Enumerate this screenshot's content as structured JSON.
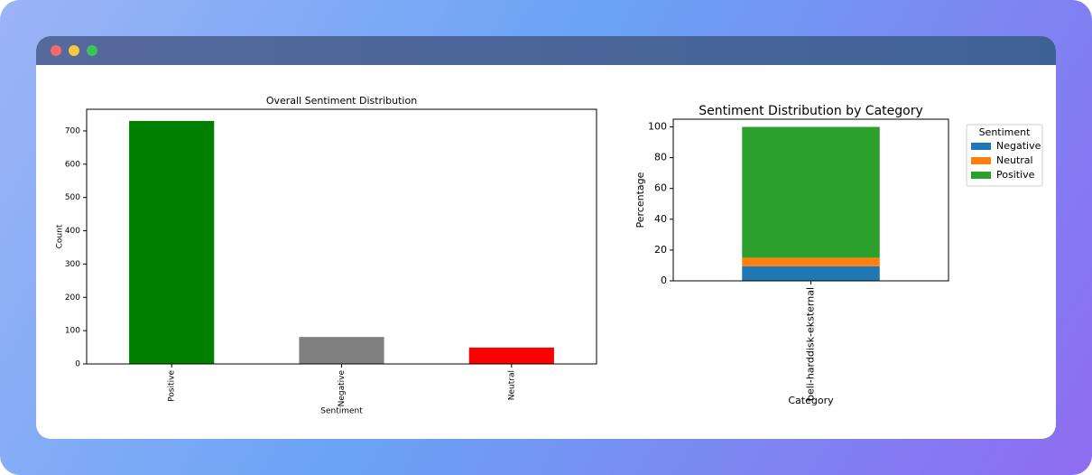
{
  "chart_data": [
    {
      "type": "bar",
      "title": "Overall Sentiment Distribution",
      "x_label": "Sentiment",
      "y_label": "Count",
      "categories": [
        "Positive",
        "Negative",
        "Neutral"
      ],
      "values": [
        730,
        81,
        49
      ],
      "colors": [
        "#008000",
        "#808080",
        "#ff0000"
      ],
      "ylim": [
        0,
        765
      ],
      "yticks": [
        0,
        100,
        200,
        300,
        400,
        500,
        600,
        700
      ],
      "grid": false
    },
    {
      "type": "stacked_bar",
      "title": "Sentiment Distribution by Category",
      "x_label": "Category",
      "y_label": "Percentage",
      "categories": [
        "beli-harddisk-eksternal"
      ],
      "series": [
        {
          "name": "Negative",
          "color": "#1f77b4",
          "values": [
            9.5
          ]
        },
        {
          "name": "Neutral",
          "color": "#ff7f0e",
          "values": [
            5.5
          ]
        },
        {
          "name": "Positive",
          "color": "#2ca02c",
          "values": [
            85
          ]
        }
      ],
      "legend_title": "Sentiment",
      "legend": "outside-right",
      "ylim": [
        0,
        105
      ],
      "yticks": [
        0,
        20,
        40,
        60,
        80,
        100
      ],
      "grid": false
    }
  ]
}
